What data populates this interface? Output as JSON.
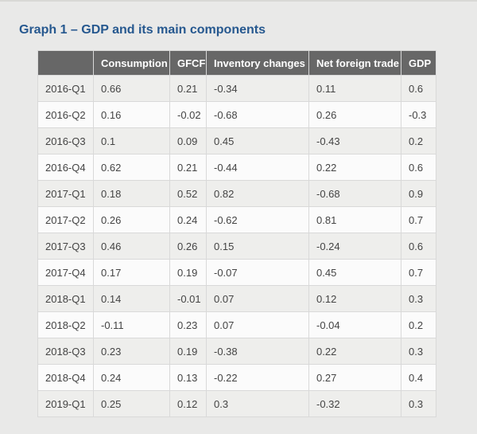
{
  "title": "Graph 1 – GDP and its main components",
  "colors": {
    "page_background": "#e9e9e8",
    "title_text": "#26588f",
    "header_background": "#676767",
    "header_text": "#ffffff",
    "cell_border": "#d9d9d9",
    "row_shaded": "#eeeeec",
    "row_light": "#fbfbfb",
    "body_text": "#444444"
  },
  "chart_data": {
    "type": "table",
    "title": "Graph 1 – GDP and its main components",
    "columns": [
      "",
      "Consumption",
      "GFCF",
      "Inventory changes",
      "Net foreign trade",
      "GDP"
    ],
    "categories": [
      "2016-Q1",
      "2016-Q2",
      "2016-Q3",
      "2016-Q4",
      "2017-Q1",
      "2017-Q2",
      "2017-Q3",
      "2017-Q4",
      "2018-Q1",
      "2018-Q2",
      "2018-Q3",
      "2018-Q4",
      "2019-Q1"
    ],
    "series": [
      {
        "name": "Consumption",
        "values": [
          0.66,
          0.16,
          0.1,
          0.62,
          0.18,
          0.26,
          0.46,
          0.17,
          0.14,
          -0.11,
          0.23,
          0.24,
          0.25
        ]
      },
      {
        "name": "GFCF",
        "values": [
          0.21,
          -0.02,
          0.09,
          0.21,
          0.52,
          0.24,
          0.26,
          0.19,
          -0.01,
          0.23,
          0.19,
          0.13,
          0.12
        ]
      },
      {
        "name": "Inventory changes",
        "values": [
          -0.34,
          -0.68,
          0.45,
          -0.44,
          0.82,
          -0.62,
          0.15,
          -0.07,
          0.07,
          0.07,
          -0.38,
          -0.22,
          0.3
        ]
      },
      {
        "name": "Net foreign trade",
        "values": [
          0.11,
          0.26,
          -0.43,
          0.22,
          -0.68,
          0.81,
          -0.24,
          0.45,
          0.12,
          -0.04,
          0.22,
          0.27,
          -0.32
        ]
      },
      {
        "name": "GDP",
        "values": [
          0.6,
          -0.3,
          0.2,
          0.6,
          0.9,
          0.7,
          0.6,
          0.7,
          0.3,
          0.2,
          0.3,
          0.4,
          0.3
        ]
      }
    ],
    "rows": [
      [
        "2016-Q1",
        "0.66",
        "0.21",
        "-0.34",
        "0.11",
        "0.6"
      ],
      [
        "2016-Q2",
        "0.16",
        "-0.02",
        "-0.68",
        "0.26",
        "-0.3"
      ],
      [
        "2016-Q3",
        "0.1",
        "0.09",
        "0.45",
        "-0.43",
        "0.2"
      ],
      [
        "2016-Q4",
        "0.62",
        "0.21",
        "-0.44",
        "0.22",
        "0.6"
      ],
      [
        "2017-Q1",
        "0.18",
        "0.52",
        "0.82",
        "-0.68",
        "0.9"
      ],
      [
        "2017-Q2",
        "0.26",
        "0.24",
        "-0.62",
        "0.81",
        "0.7"
      ],
      [
        "2017-Q3",
        "0.46",
        "0.26",
        "0.15",
        "-0.24",
        "0.6"
      ],
      [
        "2017-Q4",
        "0.17",
        "0.19",
        "-0.07",
        "0.45",
        "0.7"
      ],
      [
        "2018-Q1",
        "0.14",
        "-0.01",
        "0.07",
        "0.12",
        "0.3"
      ],
      [
        "2018-Q2",
        "-0.11",
        "0.23",
        "0.07",
        "-0.04",
        "0.2"
      ],
      [
        "2018-Q3",
        "0.23",
        "0.19",
        "-0.38",
        "0.22",
        "0.3"
      ],
      [
        "2018-Q4",
        "0.24",
        "0.13",
        "-0.22",
        "0.27",
        "0.4"
      ],
      [
        "2019-Q1",
        "0.25",
        "0.12",
        "0.3",
        "-0.32",
        "0.3"
      ]
    ]
  }
}
